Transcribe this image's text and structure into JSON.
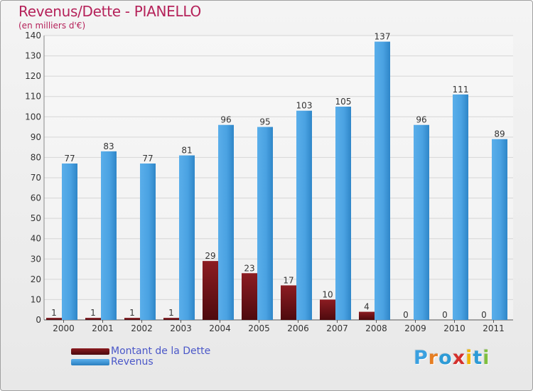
{
  "title": "Revenus/Dette - PIANELLO",
  "subtitle": "(en milliers d'€)",
  "colors": {
    "title": "#b5225a",
    "debt": "#7a1218",
    "revenue": "#3c96d8",
    "axis_text": "#333333",
    "legend_text": "#4a57c8"
  },
  "legend": [
    {
      "label": "Montant de la Dette",
      "color": "#6b0f14"
    },
    {
      "label": "Revenus",
      "color": "#3c96d8"
    }
  ],
  "logo": {
    "text": "Proxiti",
    "letter_colors": [
      "#3aa0e0",
      "#e67e22",
      "#2e9bd6",
      "#d4302c",
      "#f0b400",
      "#2e9bd6",
      "#7fbf3f"
    ]
  },
  "chart_data": {
    "type": "bar",
    "title": "Revenus/Dette - PIANELLO",
    "ylabel": "(en milliers d'€)",
    "xlabel": "",
    "categories": [
      "2000",
      "2001",
      "2002",
      "2003",
      "2004",
      "2005",
      "2006",
      "2007",
      "2008",
      "2009",
      "2010",
      "2011"
    ],
    "series": [
      {
        "name": "Montant de la Dette",
        "values": [
          1,
          1,
          1,
          1,
          29,
          23,
          17,
          10,
          4,
          0,
          0,
          0
        ]
      },
      {
        "name": "Revenus",
        "values": [
          77,
          83,
          77,
          81,
          96,
          95,
          103,
          105,
          137,
          96,
          111,
          89
        ]
      }
    ],
    "ylim": [
      0,
      140
    ],
    "yticks": [
      0,
      10,
      20,
      30,
      40,
      50,
      60,
      70,
      80,
      90,
      100,
      110,
      120,
      130,
      140
    ],
    "grid": true,
    "legend_position": "bottom-left"
  }
}
